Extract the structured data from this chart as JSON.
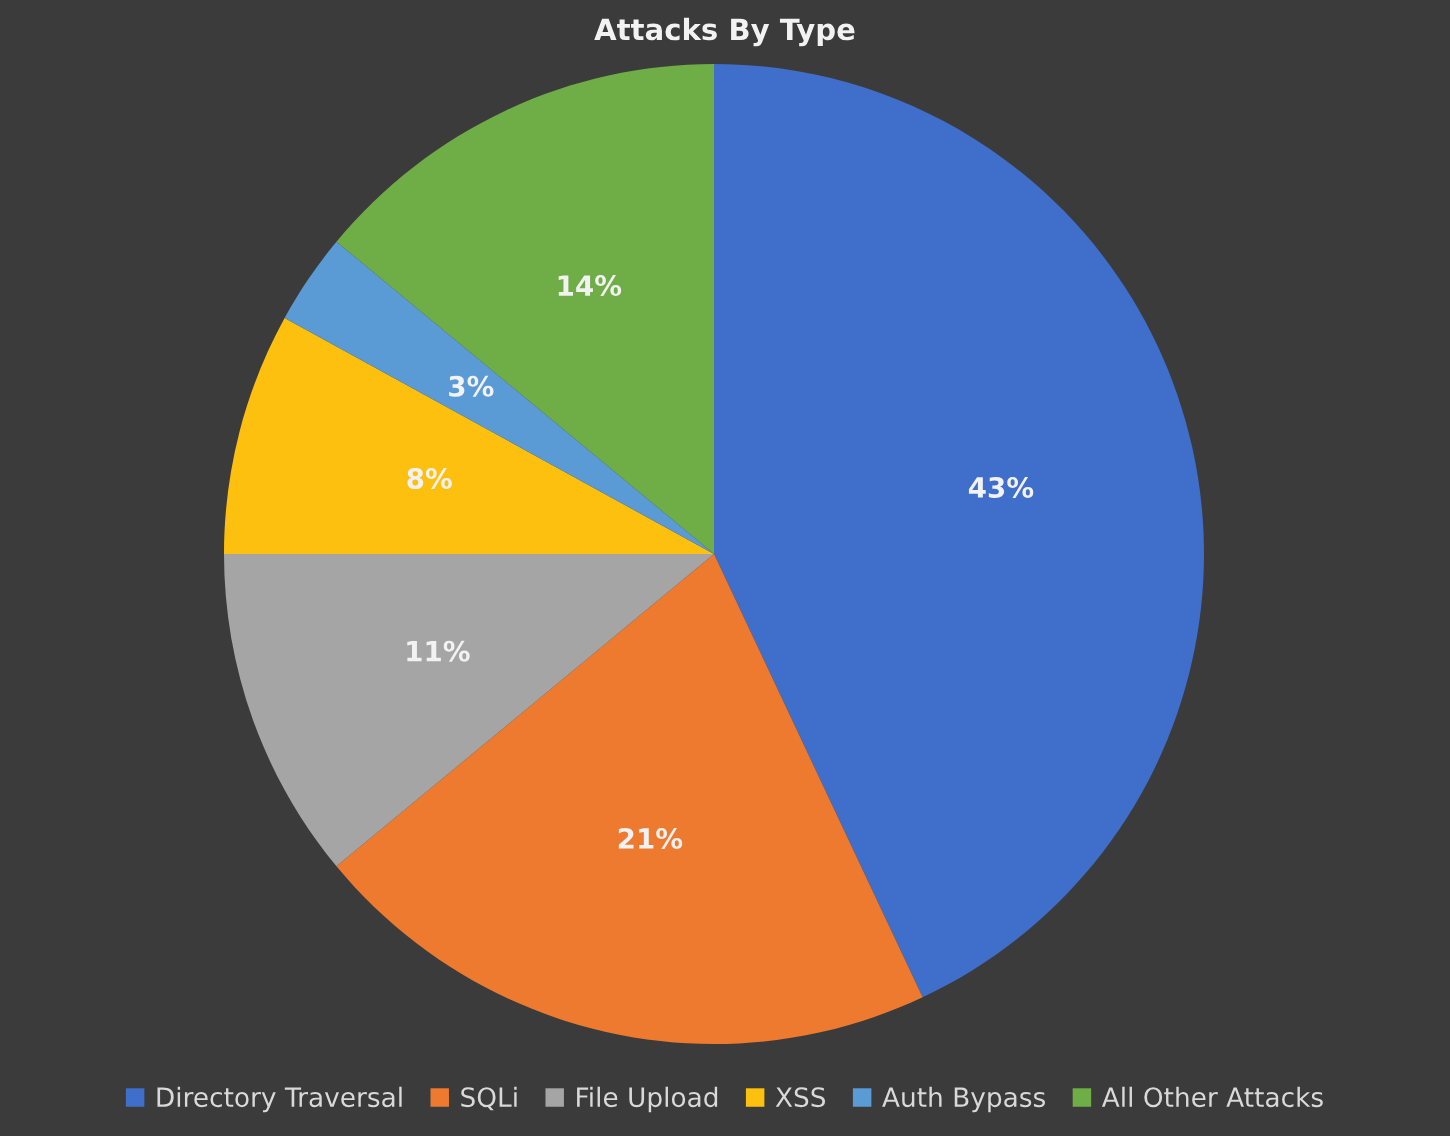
{
  "chart_data": {
    "type": "pie",
    "title": "Attacks By Type",
    "categories": [
      "Directory Traversal",
      "SQLi",
      "File Upload",
      "XSS",
      "Auth Bypass",
      "All Other Attacks"
    ],
    "values": [
      43,
      21,
      11,
      8,
      3,
      14
    ],
    "value_labels": [
      "43%",
      "21%",
      "11%",
      "8%",
      "3%",
      "14%"
    ],
    "colors": [
      "#3f6fcb",
      "#ee7a30",
      "#a5a5a5",
      "#fdc00e",
      "#5b9bd5",
      "#6fad47"
    ],
    "legend": "bottom"
  }
}
